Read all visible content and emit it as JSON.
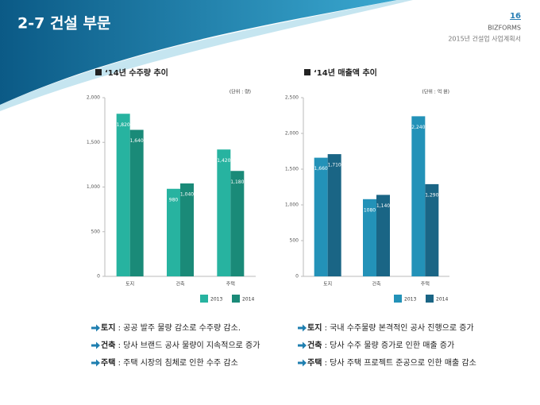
{
  "header": {
    "title": "2-7 건설 부문",
    "page": "16",
    "brand": "BIZFORMS",
    "doc": "2015년 건설업 사업계획서"
  },
  "chart_data": [
    {
      "type": "bar",
      "title": "‘14년 수주량 추이",
      "unit": "(단위 : 량)",
      "categories": [
        "토지",
        "건축",
        "주택"
      ],
      "series": [
        {
          "name": "2013",
          "color": "#27b3a0",
          "values": [
            1820,
            980,
            1420
          ],
          "value_labels": [
            "1,820",
            "980",
            "1,420"
          ]
        },
        {
          "name": "2014",
          "color": "#1a8a78",
          "values": [
            1640,
            1040,
            1180
          ],
          "value_labels": [
            "1,640",
            "1,040",
            "1,180"
          ]
        }
      ],
      "ylim": [
        0,
        2000
      ],
      "yticks": [
        0,
        {
          "value": 500,
          "label": "500"
        },
        {
          "value": 1000,
          "label": "1,000"
        },
        {
          "value": 1500,
          "label": "1,500"
        },
        {
          "value": 2000,
          "label": "2,000"
        }
      ],
      "grid": false
    },
    {
      "type": "bar",
      "title": "‘14년 매출액 추이",
      "unit": "(단위 : 억 원)",
      "categories": [
        "토지",
        "건축",
        "주택"
      ],
      "series": [
        {
          "name": "2013",
          "color": "#2392b8",
          "values": [
            1660,
            1080,
            2240
          ],
          "value_labels": [
            "1,660",
            "1080",
            "2,240"
          ]
        },
        {
          "name": "2014",
          "color": "#1a6585",
          "values": [
            1710,
            1140,
            1290
          ],
          "value_labels": [
            "1,710",
            "1,140",
            "1,290"
          ]
        }
      ],
      "ylim": [
        0,
        2500
      ],
      "yticks": [
        0,
        {
          "value": 500,
          "label": "500"
        },
        {
          "value": 1000,
          "label": "1,000"
        },
        {
          "value": 1500,
          "label": "1,500"
        },
        {
          "value": 2000,
          "label": "2,000"
        },
        {
          "value": 2500,
          "label": "2,500"
        }
      ],
      "grid": false
    }
  ],
  "notes": [
    [
      {
        "label": "토지",
        "text": " : 공공 발주 물량 감소로 수주량 감소."
      },
      {
        "label": "건축",
        "text": " : 당사 브랜드 공사 물량이 지속적으로 증가"
      },
      {
        "label": "주택",
        "text": " : 주택 시장의 침체로 인한 수주 감소"
      }
    ],
    [
      {
        "label": "토지",
        "text": " : 국내 수주물량 본격적인 공사 진행으로 증가"
      },
      {
        "label": "건축",
        "text": " : 당사 수주 물량 증가로 인한 매출 증가"
      },
      {
        "label": "주택",
        "text": " : 당사 주택 프로젝트 준공으로 인한 매출 감소"
      }
    ]
  ]
}
